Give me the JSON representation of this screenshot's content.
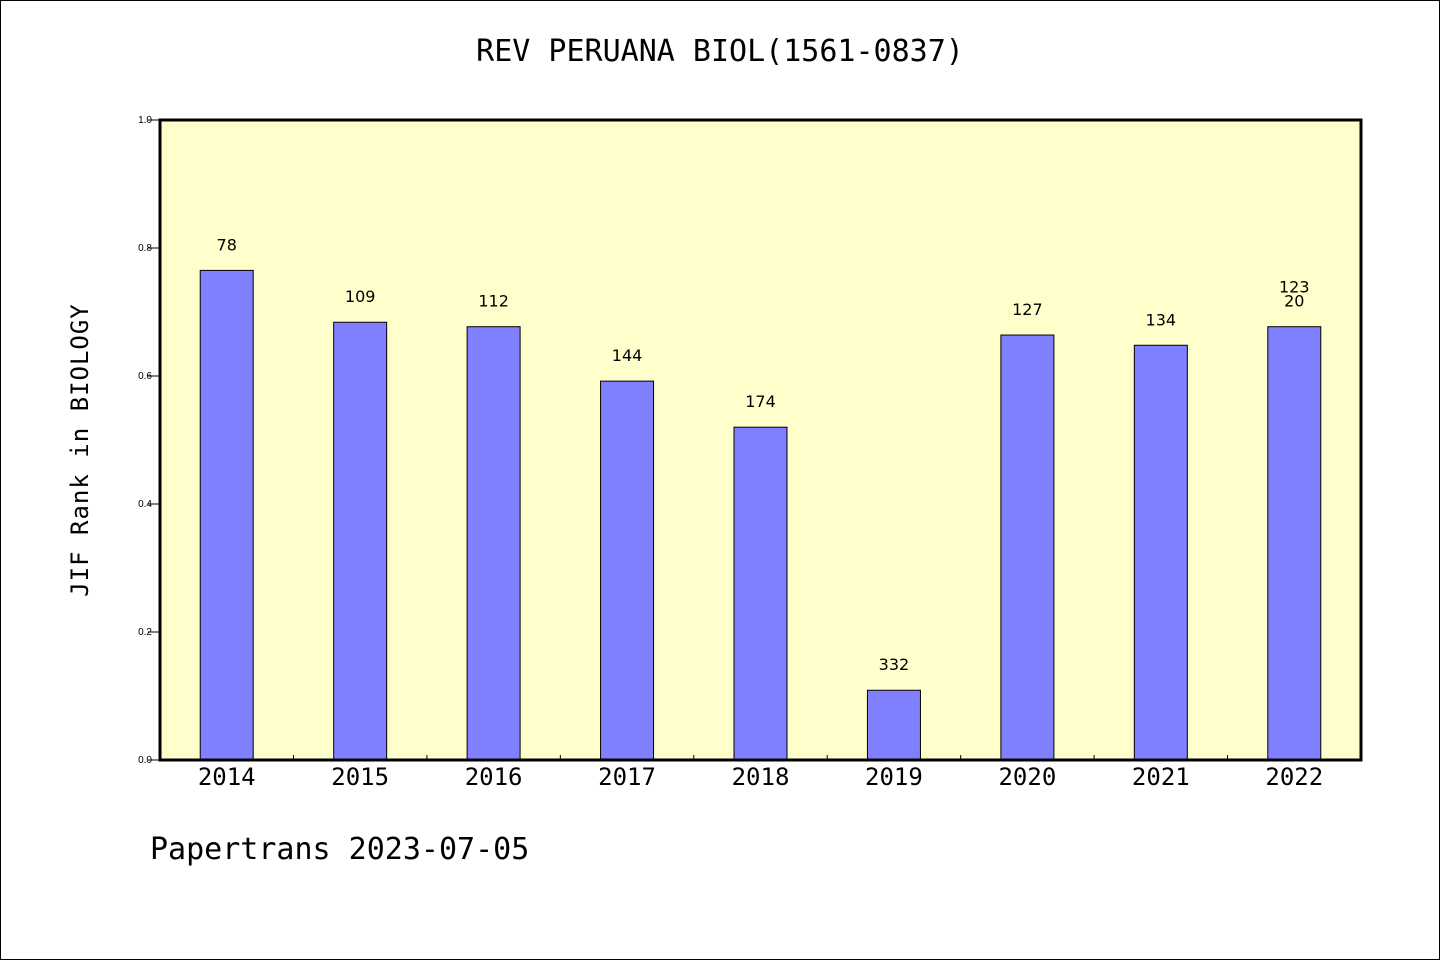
{
  "chart": {
    "title": "REV PERUANA BIOL(1561-0837)",
    "ylabel": "JIF Rank in BIOLOGY",
    "footer": "Papertrans 2023-07-05"
  },
  "colors": {
    "plot_background": "#ffffcc",
    "bar_fill": "#8080ff",
    "bar_stroke": "#000000",
    "axis": "#000000"
  },
  "chart_data": {
    "type": "bar",
    "title": "REV PERUANA BIOL(1561-0837)",
    "xlabel": "",
    "ylabel": "JIF Rank in BIOLOGY",
    "categories": [
      "2014",
      "2015",
      "2016",
      "2017",
      "2018",
      "2019",
      "2020",
      "2021",
      "2022"
    ],
    "values": [
      0.765,
      0.684,
      0.677,
      0.592,
      0.52,
      0.109,
      0.664,
      0.648,
      0.677
    ],
    "bar_labels": [
      "78",
      "109",
      "112",
      "144",
      "174",
      "332",
      "127",
      "134",
      "123\n20"
    ],
    "ylim": [
      0,
      1.0
    ],
    "yticks": [
      "0.0",
      "0.2",
      "0.4",
      "0.6",
      "0.8",
      "1.0"
    ],
    "grid": false,
    "legend": "none"
  }
}
